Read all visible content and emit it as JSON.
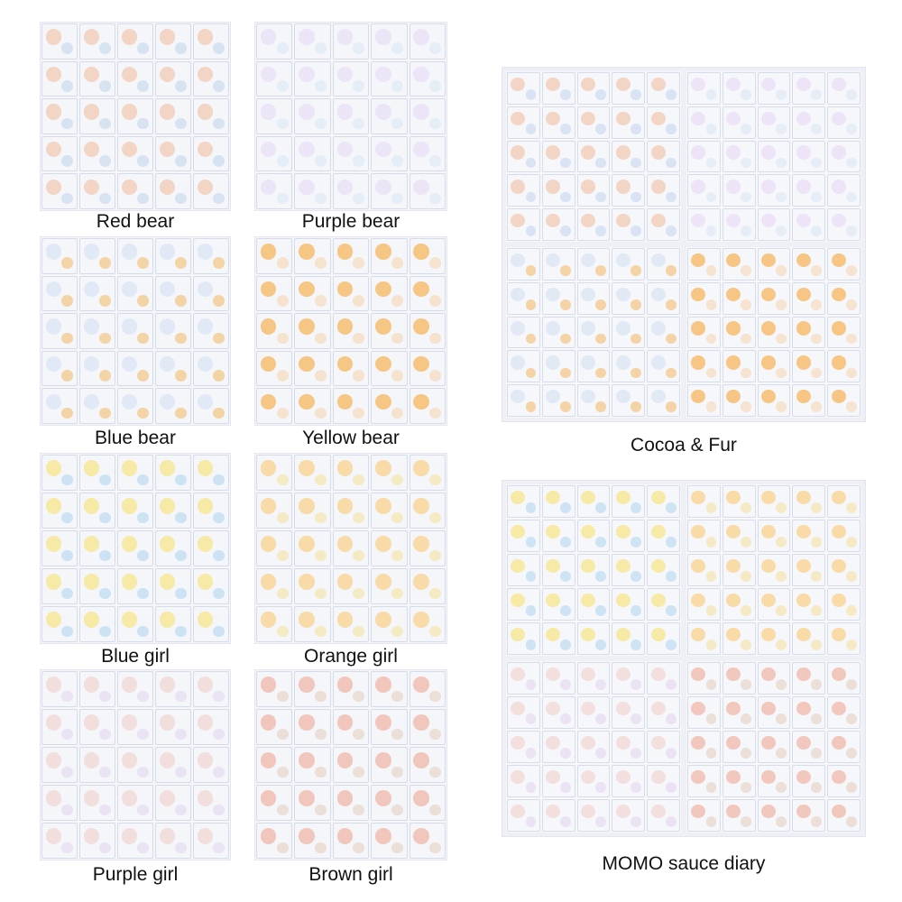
{
  "products": [
    {
      "id": "red-bear",
      "label": "Red bear",
      "palette": "red"
    },
    {
      "id": "purple-bear",
      "label": "Purple bear",
      "palette": "purple"
    },
    {
      "id": "blue-bear",
      "label": "Blue bear",
      "palette": "blue"
    },
    {
      "id": "yellow-bear",
      "label": "Yellow bear",
      "palette": "yellow"
    },
    {
      "id": "cocoa-fur",
      "label": "Cocoa & Fur",
      "palette": "set"
    },
    {
      "id": "blue-girl",
      "label": "Blue girl",
      "palette": "bgirl"
    },
    {
      "id": "orange-girl",
      "label": "Orange girl",
      "palette": "ogirl"
    },
    {
      "id": "momo-sauce-diary",
      "label": "MOMO sauce diary",
      "palette": "set"
    },
    {
      "id": "purple-girl",
      "label": "Purple girl",
      "palette": "pgirl"
    },
    {
      "id": "brown-girl",
      "label": "Brown girl",
      "palette": "brgirl"
    }
  ],
  "colors": {
    "background": "#ffffff",
    "label_text": "#111111",
    "sheet_bg": "#f4f6fa"
  }
}
